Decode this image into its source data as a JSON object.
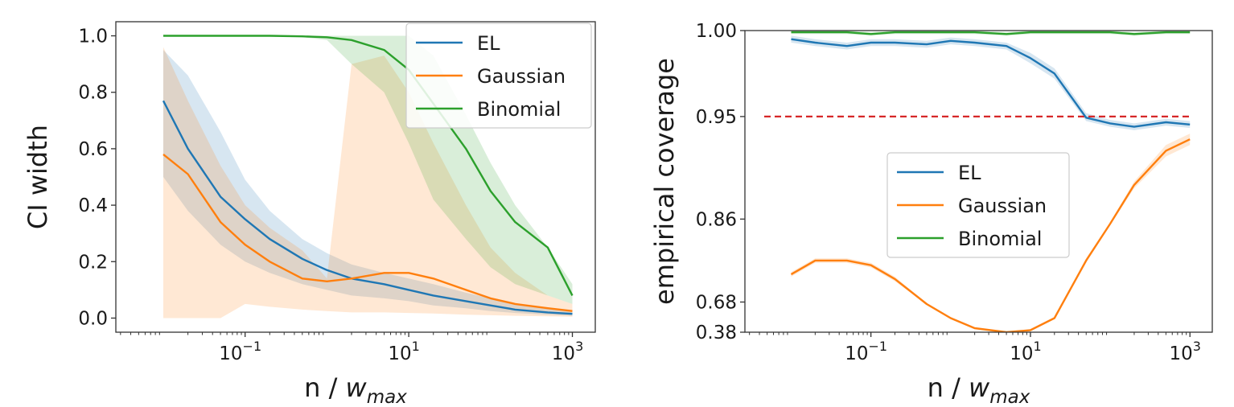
{
  "colors": {
    "EL": "#1f77b4",
    "Gaussian": "#ff7f0e",
    "Binomial": "#2ca02c",
    "reference": "#d62728"
  },
  "chart_data": [
    {
      "type": "line",
      "xlabel_main": "n / ",
      "xlabel_var": "w",
      "xlabel_sub": "max",
      "ylabel": "CI width",
      "xscale": "log",
      "xlim_log10": [
        -2.58,
        3.28
      ],
      "ylim": [
        -0.05,
        1.05
      ],
      "xticks": [
        {
          "log10": -1,
          "base": "10",
          "exp": "−1"
        },
        {
          "log10": 1,
          "base": "10",
          "exp": "1"
        },
        {
          "log10": 3,
          "base": "10",
          "exp": "3"
        }
      ],
      "yticks": [
        {
          "value": 0.0,
          "label": "0.0"
        },
        {
          "value": 0.2,
          "label": "0.2"
        },
        {
          "value": 0.4,
          "label": "0.4"
        },
        {
          "value": 0.6,
          "label": "0.6"
        },
        {
          "value": 0.8,
          "label": "0.8"
        },
        {
          "value": 1.0,
          "label": "1.0"
        }
      ],
      "legend_position": "top-right",
      "series": [
        {
          "name": "EL",
          "color_key": "EL",
          "x": [
            0.01,
            0.02,
            0.05,
            0.1,
            0.2,
            0.5,
            1,
            2,
            5,
            10,
            20,
            50,
            100,
            200,
            500,
            1000
          ],
          "y": [
            0.77,
            0.6,
            0.43,
            0.35,
            0.28,
            0.21,
            0.17,
            0.14,
            0.12,
            0.1,
            0.08,
            0.06,
            0.045,
            0.03,
            0.02,
            0.015
          ],
          "band_low": [
            0.5,
            0.38,
            0.26,
            0.2,
            0.16,
            0.12,
            0.1,
            0.08,
            0.07,
            0.06,
            0.045,
            0.035,
            0.025,
            0.018,
            0.012,
            0.008
          ],
          "band_high": [
            0.95,
            0.86,
            0.66,
            0.49,
            0.38,
            0.28,
            0.23,
            0.19,
            0.16,
            0.14,
            0.12,
            0.09,
            0.07,
            0.05,
            0.035,
            0.025
          ]
        },
        {
          "name": "Gaussian",
          "color_key": "Gaussian",
          "x": [
            0.01,
            0.02,
            0.05,
            0.1,
            0.2,
            0.5,
            1,
            2,
            5,
            10,
            20,
            50,
            100,
            200,
            500,
            1000
          ],
          "y": [
            0.58,
            0.51,
            0.34,
            0.26,
            0.2,
            0.14,
            0.13,
            0.14,
            0.16,
            0.16,
            0.14,
            0.1,
            0.07,
            0.05,
            0.035,
            0.025
          ],
          "band_low": [
            0.0,
            0.0,
            0.0,
            0.05,
            0.04,
            0.03,
            0.025,
            0.02,
            0.02,
            0.018,
            0.016,
            0.012,
            0.01,
            0.008,
            0.006,
            0.005
          ],
          "band_high": [
            0.96,
            0.77,
            0.54,
            0.4,
            0.32,
            0.24,
            0.14,
            0.9,
            0.93,
            0.8,
            0.62,
            0.4,
            0.25,
            0.16,
            0.08,
            0.05
          ]
        },
        {
          "name": "Binomial",
          "color_key": "Binomial",
          "x": [
            0.01,
            0.02,
            0.05,
            0.1,
            0.2,
            0.5,
            1,
            2,
            5,
            10,
            20,
            50,
            100,
            200,
            500,
            1000
          ],
          "y": [
            1.0,
            1.0,
            1.0,
            1.0,
            1.0,
            0.998,
            0.995,
            0.985,
            0.95,
            0.88,
            0.76,
            0.6,
            0.45,
            0.34,
            0.25,
            0.08
          ],
          "band_low": [
            1.0,
            1.0,
            1.0,
            1.0,
            1.0,
            0.995,
            0.985,
            0.9,
            0.8,
            0.62,
            0.42,
            0.28,
            0.18,
            0.12,
            0.08,
            0.05
          ],
          "band_high": [
            1.0,
            1.0,
            1.0,
            1.0,
            1.0,
            1.0,
            1.0,
            1.0,
            1.0,
            1.0,
            0.93,
            0.72,
            0.55,
            0.4,
            0.25,
            0.12
          ]
        }
      ]
    },
    {
      "type": "line",
      "xlabel_main": "n / ",
      "xlabel_var": "w",
      "xlabel_sub": "max",
      "ylabel": "empirical coverage",
      "xscale": "log",
      "xlim_log10": [
        -2.58,
        3.28
      ],
      "yscale": "warped",
      "ylim": [
        0.38,
        1.0
      ],
      "xticks": [
        {
          "log10": -1,
          "base": "10",
          "exp": "−1"
        },
        {
          "log10": 1,
          "base": "10",
          "exp": "1"
        },
        {
          "log10": 3,
          "base": "10",
          "exp": "3"
        }
      ],
      "yticks": [
        {
          "value": 0.38,
          "label": "0.38"
        },
        {
          "value": 0.68,
          "label": "0.68"
        },
        {
          "value": 0.86,
          "label": "0.86"
        },
        {
          "value": 0.95,
          "label": "0.95"
        },
        {
          "value": 1.0,
          "label": "1.00"
        }
      ],
      "reference_line": {
        "y": 0.95,
        "style": "dashed",
        "color_key": "reference"
      },
      "legend_position": "center-left",
      "series": [
        {
          "name": "EL",
          "color_key": "EL",
          "x": [
            0.01,
            0.02,
            0.05,
            0.1,
            0.2,
            0.5,
            1,
            2,
            5,
            10,
            20,
            50,
            100,
            200,
            500,
            1000
          ],
          "y": [
            0.995,
            0.993,
            0.991,
            0.993,
            0.993,
            0.992,
            0.994,
            0.993,
            0.991,
            0.984,
            0.975,
            0.949,
            0.944,
            0.941,
            0.945,
            0.943
          ],
          "band_low": [
            0.993,
            0.991,
            0.989,
            0.991,
            0.991,
            0.99,
            0.992,
            0.991,
            0.989,
            0.981,
            0.972,
            0.946,
            0.941,
            0.938,
            0.942,
            0.94
          ],
          "band_high": [
            0.997,
            0.995,
            0.993,
            0.995,
            0.995,
            0.994,
            0.996,
            0.995,
            0.993,
            0.987,
            0.978,
            0.952,
            0.947,
            0.944,
            0.948,
            0.946
          ]
        },
        {
          "name": "Gaussian",
          "color_key": "Gaussian",
          "x": [
            0.01,
            0.02,
            0.05,
            0.1,
            0.2,
            0.5,
            1,
            2,
            5,
            10,
            20,
            50,
            100,
            200,
            500,
            1000
          ],
          "y": [
            0.74,
            0.77,
            0.77,
            0.76,
            0.73,
            0.66,
            0.52,
            0.42,
            0.38,
            0.4,
            0.52,
            0.77,
            0.85,
            0.89,
            0.92,
            0.93
          ],
          "band_low": [
            0.735,
            0.765,
            0.765,
            0.755,
            0.725,
            0.655,
            0.515,
            0.415,
            0.375,
            0.395,
            0.515,
            0.765,
            0.847,
            0.887,
            0.915,
            0.925
          ],
          "band_high": [
            0.745,
            0.775,
            0.775,
            0.765,
            0.735,
            0.665,
            0.525,
            0.425,
            0.385,
            0.405,
            0.525,
            0.775,
            0.853,
            0.893,
            0.925,
            0.935
          ]
        },
        {
          "name": "Binomial",
          "color_key": "Binomial",
          "x": [
            0.01,
            0.02,
            0.05,
            0.1,
            0.2,
            0.5,
            1,
            2,
            5,
            10,
            20,
            50,
            100,
            200,
            500,
            1000
          ],
          "y": [
            0.999,
            0.999,
            0.999,
            0.998,
            0.999,
            0.999,
            0.999,
            0.999,
            0.998,
            0.999,
            0.999,
            0.999,
            0.999,
            0.998,
            0.999,
            0.999
          ],
          "band_low": [
            0.998,
            0.998,
            0.998,
            0.997,
            0.998,
            0.998,
            0.998,
            0.998,
            0.997,
            0.998,
            0.998,
            0.998,
            0.998,
            0.997,
            0.998,
            0.998
          ],
          "band_high": [
            1.0,
            1.0,
            1.0,
            0.999,
            1.0,
            1.0,
            1.0,
            1.0,
            0.999,
            1.0,
            1.0,
            1.0,
            1.0,
            0.999,
            1.0,
            1.0
          ]
        }
      ]
    }
  ]
}
